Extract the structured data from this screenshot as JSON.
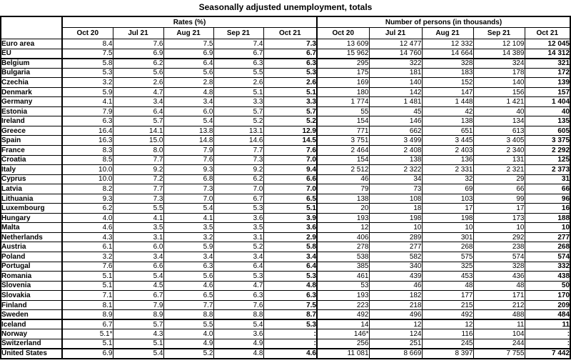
{
  "title": "Seasonally adjusted unemployment, totals",
  "table": {
    "corner_label": "",
    "rates_group_label": "Rates (%)",
    "persons_group_label": "Number of persons (in thousands)",
    "month_headers": [
      "Oct 20",
      "Jul 21",
      "Aug 21",
      "Sep 21",
      "Oct 21"
    ],
    "sections": [
      {
        "name": "aggregates",
        "rows": [
          {
            "country": "Euro area",
            "rates": [
              "8.4",
              "7.6",
              "7.5",
              "7.4",
              "7.3"
            ],
            "persons": [
              "13 609",
              "12 477",
              "12 332",
              "12 109",
              "12 045"
            ]
          },
          {
            "country": "EU",
            "rates": [
              "7.5",
              "6.9",
              "6.9",
              "6.7",
              "6.7"
            ],
            "persons": [
              "15 962",
              "14 760",
              "14 664",
              "14 389",
              "14 312"
            ]
          }
        ]
      },
      {
        "name": "eu-member-states",
        "rows": [
          {
            "country": "Belgium",
            "rates": [
              "5.8",
              "6.2",
              "6.4",
              "6.3",
              "6.3"
            ],
            "persons": [
              "295",
              "322",
              "328",
              "324",
              "321"
            ]
          },
          {
            "country": "Bulgaria",
            "rates": [
              "5.3",
              "5.6",
              "5.6",
              "5.5",
              "5.3"
            ],
            "persons": [
              "175",
              "181",
              "183",
              "178",
              "172"
            ]
          },
          {
            "country": "Czechia",
            "rates": [
              "3.2",
              "2.6",
              "2.8",
              "2.6",
              "2.6"
            ],
            "persons": [
              "169",
              "140",
              "152",
              "140",
              "139"
            ]
          },
          {
            "country": "Denmark",
            "rates": [
              "5.9",
              "4.7",
              "4.8",
              "5.1",
              "5.1"
            ],
            "persons": [
              "180",
              "142",
              "147",
              "156",
              "157"
            ]
          },
          {
            "country": "Germany",
            "rates": [
              "4.1",
              "3.4",
              "3.4",
              "3.3",
              "3.3"
            ],
            "persons": [
              "1 774",
              "1 481",
              "1 448",
              "1 421",
              "1 404"
            ]
          },
          {
            "country": "Estonia",
            "rates": [
              "7.9",
              "6.4",
              "6.0",
              "5.7",
              "5.7"
            ],
            "persons": [
              "55",
              "45",
              "42",
              "40",
              "40"
            ]
          },
          {
            "country": "Ireland",
            "rates": [
              "6.3",
              "5.7",
              "5.4",
              "5.2",
              "5.2"
            ],
            "persons": [
              "154",
              "146",
              "138",
              "134",
              "135"
            ]
          },
          {
            "country": "Greece",
            "rates": [
              "16.4",
              "14.1",
              "13.8",
              "13.1",
              "12.9"
            ],
            "persons": [
              "771",
              "662",
              "651",
              "613",
              "605"
            ]
          },
          {
            "country": "Spain",
            "rates": [
              "16.3",
              "15.0",
              "14.8",
              "14.6",
              "14.5"
            ],
            "persons": [
              "3 751",
              "3 499",
              "3 445",
              "3 405",
              "3 375"
            ]
          },
          {
            "country": "France",
            "rates": [
              "8.3",
              "8.0",
              "7.9",
              "7.7",
              "7.6"
            ],
            "persons": [
              "2 464",
              "2 408",
              "2 403",
              "2 340",
              "2 292"
            ]
          },
          {
            "country": "Croatia",
            "rates": [
              "8.5",
              "7.7",
              "7.6",
              "7.3",
              "7.0"
            ],
            "persons": [
              "154",
              "138",
              "136",
              "131",
              "125"
            ]
          },
          {
            "country": "Italy",
            "rates": [
              "10.0",
              "9.2",
              "9.3",
              "9.2",
              "9.4"
            ],
            "persons": [
              "2 512",
              "2 322",
              "2 331",
              "2 321",
              "2 373"
            ]
          },
          {
            "country": "Cyprus",
            "rates": [
              "10.0",
              "7.2",
              "6.8",
              "6.2",
              "6.6"
            ],
            "persons": [
              "46",
              "34",
              "32",
              "29",
              "31"
            ]
          },
          {
            "country": "Latvia",
            "rates": [
              "8.2",
              "7.7",
              "7.3",
              "7.0",
              "7.0"
            ],
            "persons": [
              "79",
              "73",
              "69",
              "66",
              "66"
            ]
          },
          {
            "country": "Lithuania",
            "rates": [
              "9.3",
              "7.3",
              "7.0",
              "6.7",
              "6.5"
            ],
            "persons": [
              "138",
              "108",
              "103",
              "99",
              "96"
            ]
          },
          {
            "country": "Luxembourg",
            "rates": [
              "6.2",
              "5.5",
              "5.4",
              "5.3",
              "5.1"
            ],
            "persons": [
              "20",
              "18",
              "17",
              "17",
              "16"
            ]
          },
          {
            "country": "Hungary",
            "rates": [
              "4.0",
              "4.1",
              "4.1",
              "3.6",
              "3.9"
            ],
            "persons": [
              "193",
              "198",
              "198",
              "173",
              "188"
            ]
          },
          {
            "country": "Malta",
            "rates": [
              "4.6",
              "3.5",
              "3.5",
              "3.5",
              "3.6"
            ],
            "persons": [
              "12",
              "10",
              "10",
              "10",
              "10"
            ]
          },
          {
            "country": "Netherlands",
            "rates": [
              "4.3",
              "3.1",
              "3.2",
              "3.1",
              "2.9"
            ],
            "persons": [
              "406",
              "289",
              "301",
              "292",
              "277"
            ]
          },
          {
            "country": "Austria",
            "rates": [
              "6.1",
              "6.0",
              "5.9",
              "5.2",
              "5.8"
            ],
            "persons": [
              "278",
              "277",
              "268",
              "238",
              "268"
            ]
          },
          {
            "country": "Poland",
            "rates": [
              "3.2",
              "3.4",
              "3.4",
              "3.4",
              "3.4"
            ],
            "persons": [
              "538",
              "582",
              "575",
              "574",
              "574"
            ]
          },
          {
            "country": "Portugal",
            "rates": [
              "7.6",
              "6.6",
              "6.3",
              "6.4",
              "6.4"
            ],
            "persons": [
              "385",
              "340",
              "325",
              "328",
              "332"
            ]
          },
          {
            "country": "Romania",
            "rates": [
              "5.1",
              "5.4",
              "5.6",
              "5.3",
              "5.3"
            ],
            "persons": [
              "461",
              "439",
              "453",
              "436",
              "438"
            ]
          },
          {
            "country": "Slovenia",
            "rates": [
              "5.1",
              "4.5",
              "4.6",
              "4.7",
              "4.8"
            ],
            "persons": [
              "53",
              "46",
              "48",
              "48",
              "50"
            ]
          },
          {
            "country": "Slovakia",
            "rates": [
              "7.1",
              "6.7",
              "6.5",
              "6.3",
              "6.3"
            ],
            "persons": [
              "193",
              "182",
              "177",
              "171",
              "170"
            ]
          },
          {
            "country": "Finland",
            "rates": [
              "8.1",
              "7.9",
              "7.7",
              "7.6",
              "7.5"
            ],
            "persons": [
              "223",
              "218",
              "215",
              "212",
              "209"
            ]
          },
          {
            "country": "Sweden",
            "rates": [
              "8.9",
              "8.9",
              "8.8",
              "8.8",
              "8.7"
            ],
            "persons": [
              "492",
              "496",
              "492",
              "488",
              "484"
            ]
          }
        ]
      },
      {
        "name": "efta",
        "rows": [
          {
            "country": "Iceland",
            "rates": [
              "6.7",
              "5.7",
              "5.5",
              "5.4",
              "5.3"
            ],
            "persons": [
              "14",
              "12",
              "12",
              "11",
              "11"
            ]
          },
          {
            "country": "Norway",
            "rates": [
              "5.1*",
              "4.3",
              "4.0",
              "3.6",
              ":"
            ],
            "persons": [
              "146*",
              "124",
              "116",
              "104",
              ":"
            ]
          },
          {
            "country": "Switzerland",
            "rates": [
              "5.1",
              "5.1",
              "4.9",
              "4.9",
              ":"
            ],
            "persons": [
              "256",
              "251",
              "245",
              "244",
              ":"
            ]
          }
        ]
      },
      {
        "name": "other",
        "rows": [
          {
            "country": "United States",
            "rates": [
              "6.9",
              "5.4",
              "5.2",
              "4.8",
              "4.6"
            ],
            "persons": [
              "11 081",
              "8 669",
              "8 397",
              "7 755",
              "7 442"
            ]
          }
        ]
      }
    ]
  }
}
